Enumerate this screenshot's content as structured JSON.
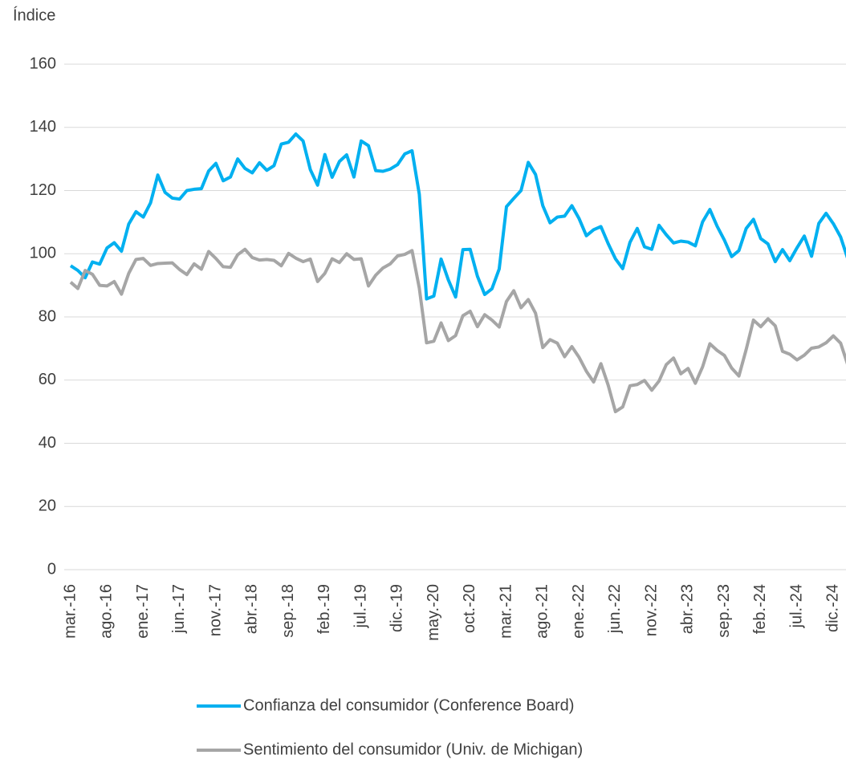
{
  "chart_data": {
    "type": "line",
    "y_label": "Índice",
    "categories": [
      "mar.-16",
      null,
      null,
      null,
      null,
      "ago.-16",
      null,
      null,
      null,
      null,
      "ene.-17",
      null,
      null,
      null,
      null,
      "jun.-17",
      null,
      null,
      null,
      null,
      "nov.-17",
      null,
      null,
      null,
      null,
      "abr.-18",
      null,
      null,
      null,
      null,
      "sep.-18",
      null,
      null,
      null,
      null,
      "feb.-19",
      null,
      null,
      null,
      null,
      "jul.-19",
      null,
      null,
      null,
      null,
      "dic.-19",
      null,
      null,
      null,
      null,
      "may.-20",
      null,
      null,
      null,
      null,
      "oct.-20",
      null,
      null,
      null,
      null,
      "mar.-21",
      null,
      null,
      null,
      null,
      "ago.-21",
      null,
      null,
      null,
      null,
      "ene.-22",
      null,
      null,
      null,
      null,
      "jun.-22",
      null,
      null,
      null,
      null,
      "nov.-22",
      null,
      null,
      null,
      null,
      "abr.-23",
      null,
      null,
      null,
      null,
      "sep.-23",
      null,
      null,
      null,
      null,
      "feb.-24",
      null,
      null,
      null,
      null,
      "jul.-24",
      null,
      null,
      null,
      null,
      "dic.-24",
      null,
      null
    ],
    "series": [
      {
        "name": "Confianza del consumidor (Conference Board)",
        "color": "#00b0f0",
        "values": [
          96.2,
          94.7,
          92.4,
          97.4,
          96.7,
          101.8,
          103.5,
          100.8,
          109.4,
          113.3,
          111.6,
          116.1,
          124.9,
          119.4,
          117.6,
          117.3,
          120.0,
          120.4,
          120.6,
          126.2,
          128.6,
          123.1,
          124.3,
          130.0,
          127.0,
          125.6,
          128.8,
          126.4,
          127.9,
          134.7,
          135.3,
          137.9,
          135.7,
          126.6,
          121.7,
          131.4,
          124.2,
          129.2,
          131.3,
          124.3,
          135.7,
          134.2,
          126.3,
          126.1,
          126.8,
          128.2,
          131.6,
          132.6,
          118.8,
          85.7,
          86.6,
          98.3,
          91.7,
          86.3,
          101.3,
          101.4,
          92.9,
          87.1,
          88.9,
          95.2,
          114.9,
          117.5,
          120.0,
          128.9,
          125.1,
          115.2,
          109.8,
          111.6,
          111.9,
          115.2,
          111.1,
          105.7,
          107.6,
          108.6,
          103.2,
          98.4,
          95.3,
          103.6,
          108.0,
          102.2,
          101.4,
          109.0,
          106.0,
          103.4,
          104.0,
          103.7,
          102.5,
          110.1,
          114.0,
          108.7,
          104.3,
          99.1,
          101.0,
          108.0,
          110.9,
          104.8,
          103.1,
          97.5,
          101.3,
          97.8,
          101.9,
          105.6,
          99.2,
          109.6,
          112.8,
          109.5,
          105.3,
          98.3
        ]
      },
      {
        "name": "Sentimiento del consumidor (Univ. de Michigan)",
        "color": "#a6a6a6",
        "values": [
          91.0,
          89.0,
          94.7,
          93.5,
          90.0,
          89.8,
          91.2,
          87.2,
          93.8,
          98.2,
          98.5,
          96.3,
          96.9,
          97.0,
          97.1,
          95.0,
          93.4,
          96.8,
          95.1,
          100.7,
          98.5,
          95.9,
          95.7,
          99.7,
          101.4,
          98.8,
          98.0,
          98.2,
          97.9,
          96.2,
          100.1,
          98.6,
          97.5,
          98.3,
          91.2,
          93.8,
          98.4,
          97.2,
          100.0,
          98.2,
          98.4,
          89.8,
          93.2,
          95.5,
          96.8,
          99.3,
          99.8,
          101.0,
          89.1,
          71.8,
          72.3,
          78.1,
          72.5,
          74.1,
          80.4,
          81.8,
          76.9,
          80.7,
          79.0,
          76.8,
          84.9,
          88.3,
          82.9,
          85.5,
          81.2,
          70.3,
          72.8,
          71.7,
          67.4,
          70.6,
          67.2,
          62.8,
          59.4,
          65.2,
          58.4,
          50.0,
          51.5,
          58.2,
          58.6,
          59.9,
          56.8,
          59.7,
          64.9,
          67.0,
          62.0,
          63.7,
          59.0,
          64.2,
          71.5,
          69.4,
          67.8,
          63.8,
          61.3,
          69.7,
          79.0,
          76.9,
          79.4,
          77.2,
          69.1,
          68.2,
          66.4,
          67.9,
          70.1,
          70.5,
          71.8,
          74.0,
          71.7,
          64.7
        ]
      }
    ],
    "ylim": [
      0,
      160
    ],
    "yticks": [
      0,
      20,
      40,
      60,
      80,
      100,
      120,
      140,
      160
    ],
    "grid": true,
    "legend": "bottom"
  }
}
